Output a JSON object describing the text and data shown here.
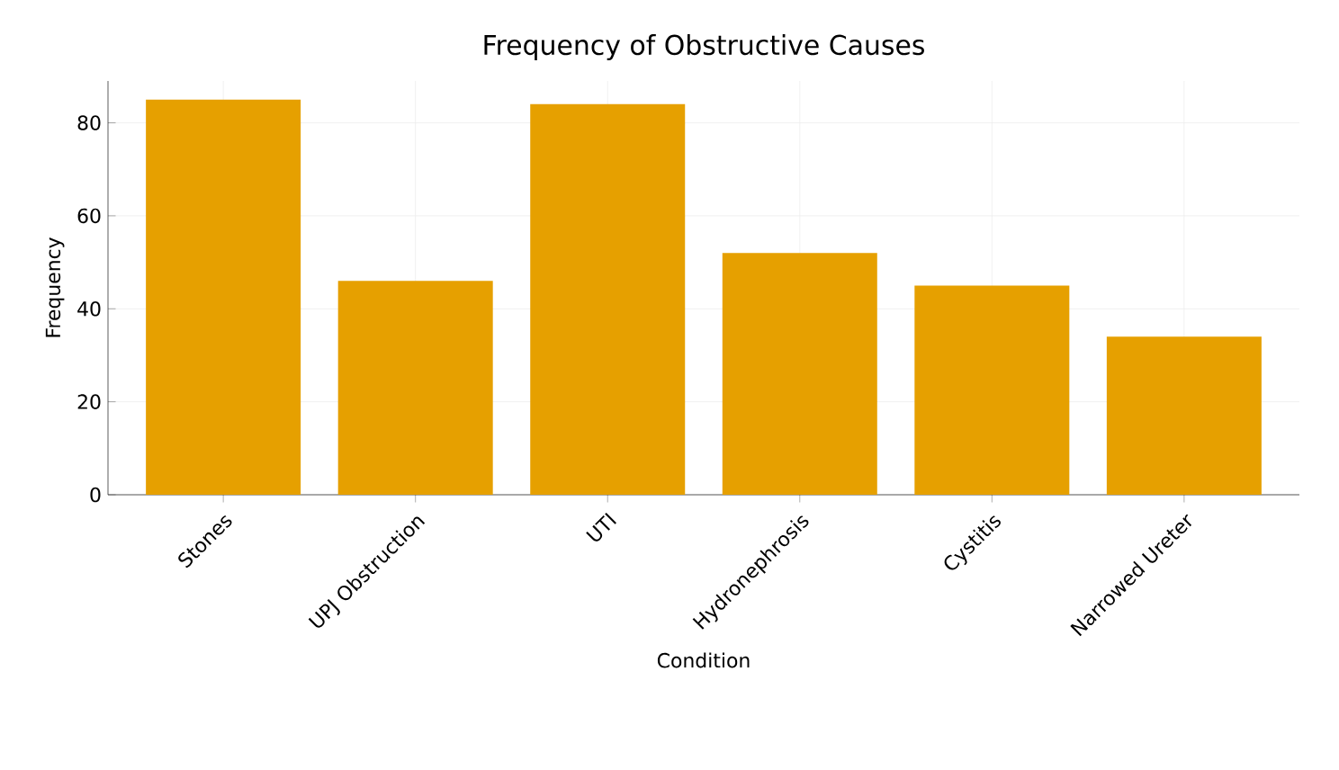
{
  "chart_data": {
    "type": "bar",
    "title": "Frequency of Obstructive Causes",
    "xlabel": "Condition",
    "ylabel": "Frequency",
    "categories": [
      "Stones",
      "UPJ Obstruction",
      "UTI",
      "Hydronephrosis",
      "Cystitis",
      "Narrowed Ureter"
    ],
    "values": [
      85,
      46,
      84,
      52,
      45,
      34
    ],
    "color": "#e6a000",
    "ylim": [
      0,
      89
    ],
    "yticks": [
      0,
      20,
      40,
      60,
      80
    ],
    "grid": true
  }
}
